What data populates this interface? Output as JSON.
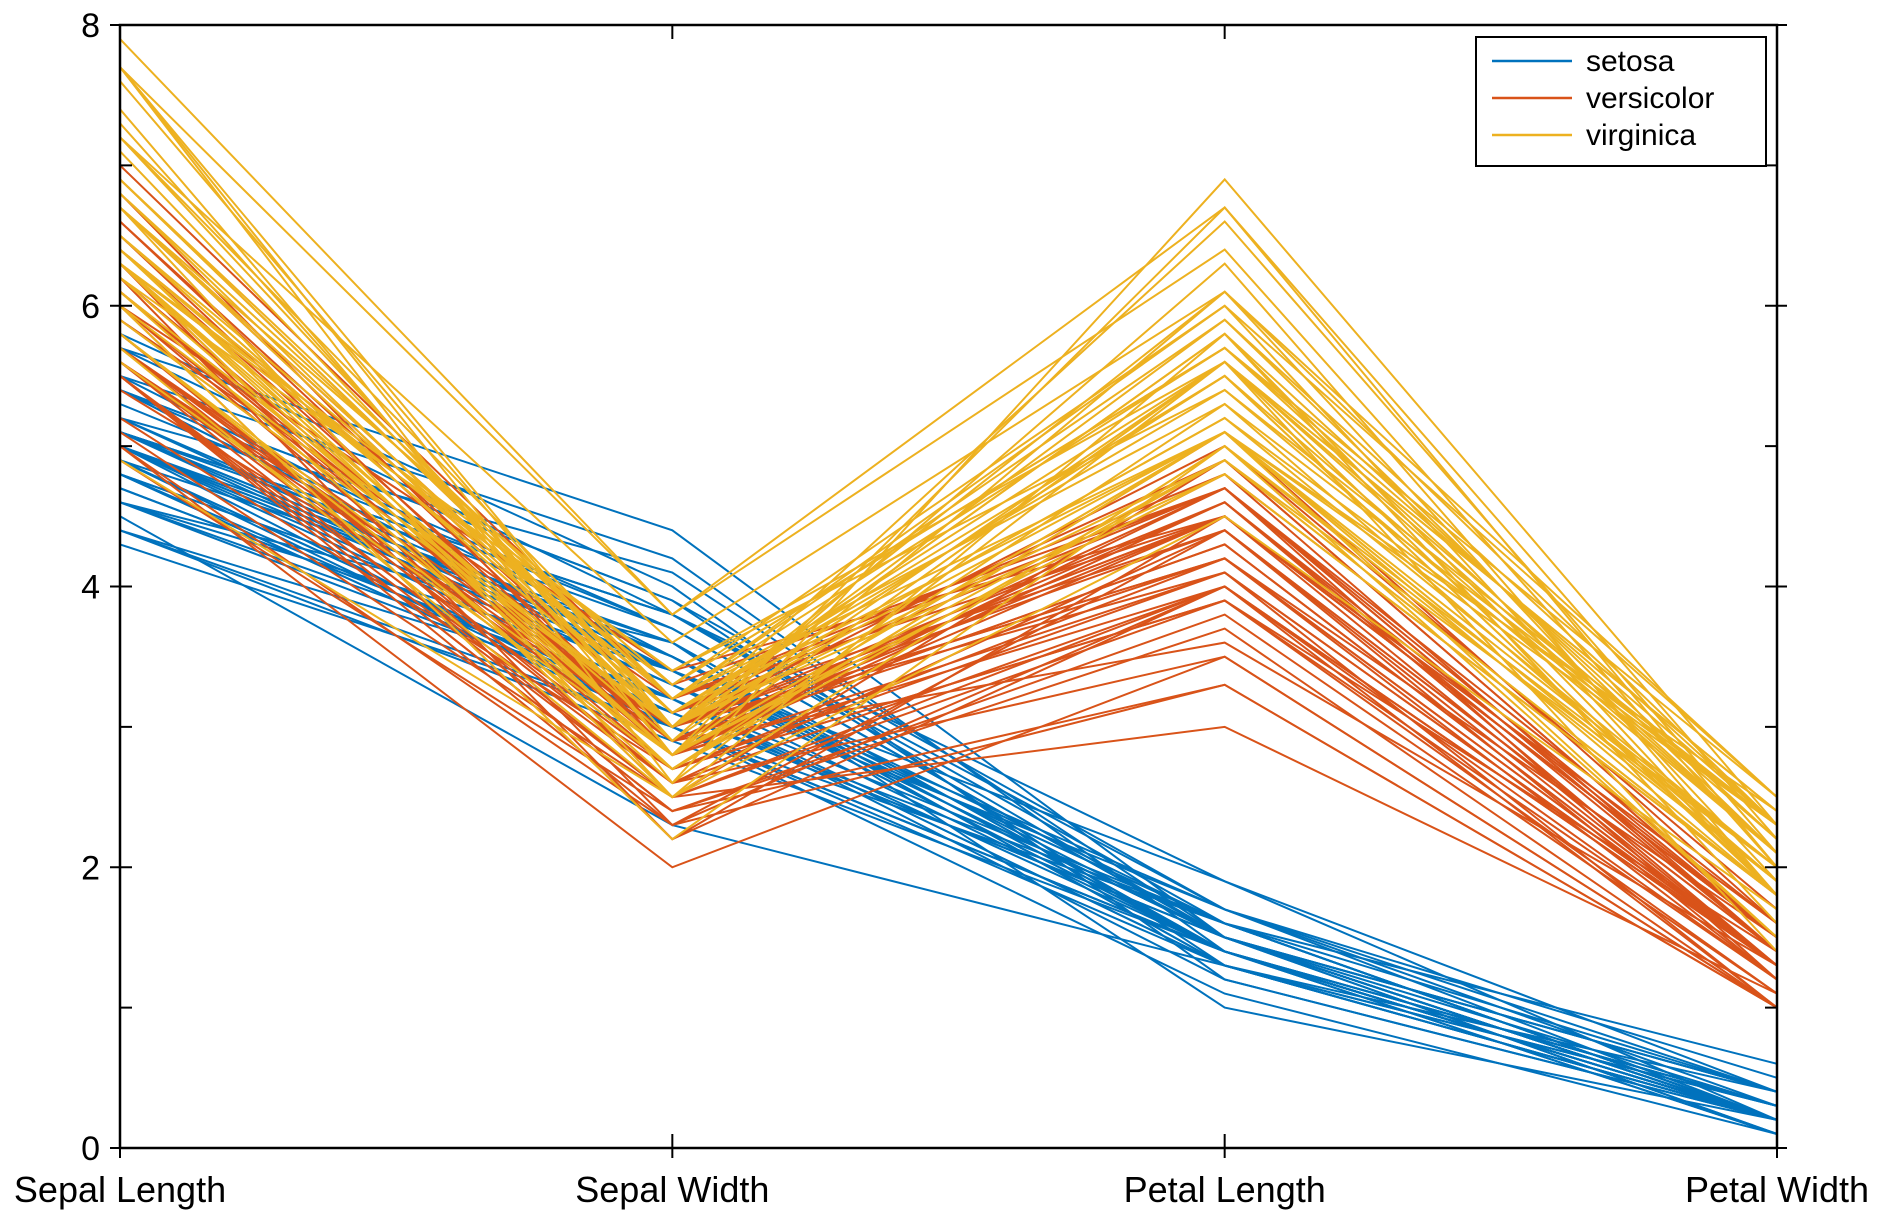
{
  "chart_data": {
    "type": "line",
    "title": "",
    "xlabel": "",
    "ylabel": "",
    "ylim": [
      0,
      8
    ],
    "yticks": [
      0,
      2,
      4,
      6,
      8
    ],
    "categories": [
      "Sepal Length",
      "Sepal Width",
      "Petal Length",
      "Petal Width"
    ],
    "grid": false,
    "legend": {
      "placement": "top-right",
      "entries": [
        "setosa",
        "versicolor",
        "virginica"
      ]
    },
    "colors": {
      "setosa": "#0072BD",
      "versicolor": "#D95319",
      "virginica": "#EDB120"
    },
    "series": [
      {
        "name": "setosa",
        "values": [
          [
            5.1,
            3.5,
            1.4,
            0.2
          ],
          [
            4.9,
            3.0,
            1.4,
            0.2
          ],
          [
            4.7,
            3.2,
            1.3,
            0.2
          ],
          [
            4.6,
            3.1,
            1.5,
            0.2
          ],
          [
            5.0,
            3.6,
            1.4,
            0.2
          ],
          [
            5.4,
            3.9,
            1.7,
            0.4
          ],
          [
            4.6,
            3.4,
            1.4,
            0.3
          ],
          [
            5.0,
            3.4,
            1.5,
            0.2
          ],
          [
            4.4,
            2.9,
            1.4,
            0.2
          ],
          [
            4.9,
            3.1,
            1.5,
            0.1
          ],
          [
            5.4,
            3.7,
            1.5,
            0.2
          ],
          [
            4.8,
            3.4,
            1.6,
            0.2
          ],
          [
            4.8,
            3.0,
            1.4,
            0.1
          ],
          [
            4.3,
            3.0,
            1.1,
            0.1
          ],
          [
            5.8,
            4.0,
            1.2,
            0.2
          ],
          [
            5.7,
            4.4,
            1.5,
            0.4
          ],
          [
            5.4,
            3.9,
            1.3,
            0.4
          ],
          [
            5.1,
            3.5,
            1.4,
            0.3
          ],
          [
            5.7,
            3.8,
            1.7,
            0.3
          ],
          [
            5.1,
            3.8,
            1.5,
            0.3
          ],
          [
            5.4,
            3.4,
            1.7,
            0.2
          ],
          [
            5.1,
            3.7,
            1.5,
            0.4
          ],
          [
            4.6,
            3.6,
            1.0,
            0.2
          ],
          [
            5.1,
            3.3,
            1.7,
            0.5
          ],
          [
            4.8,
            3.4,
            1.9,
            0.2
          ],
          [
            5.0,
            3.0,
            1.6,
            0.2
          ],
          [
            5.0,
            3.4,
            1.6,
            0.4
          ],
          [
            5.2,
            3.5,
            1.5,
            0.2
          ],
          [
            5.2,
            3.4,
            1.4,
            0.2
          ],
          [
            4.7,
            3.2,
            1.6,
            0.2
          ],
          [
            4.8,
            3.1,
            1.6,
            0.2
          ],
          [
            5.4,
            3.4,
            1.5,
            0.4
          ],
          [
            5.2,
            4.1,
            1.5,
            0.1
          ],
          [
            5.5,
            4.2,
            1.4,
            0.2
          ],
          [
            4.9,
            3.1,
            1.5,
            0.2
          ],
          [
            5.0,
            3.2,
            1.2,
            0.2
          ],
          [
            5.5,
            3.5,
            1.3,
            0.2
          ],
          [
            4.9,
            3.6,
            1.4,
            0.1
          ],
          [
            4.4,
            3.0,
            1.3,
            0.2
          ],
          [
            5.1,
            3.4,
            1.5,
            0.2
          ],
          [
            5.0,
            3.5,
            1.3,
            0.3
          ],
          [
            4.5,
            2.3,
            1.3,
            0.3
          ],
          [
            4.4,
            3.2,
            1.3,
            0.2
          ],
          [
            5.0,
            3.5,
            1.6,
            0.6
          ],
          [
            5.1,
            3.8,
            1.9,
            0.4
          ],
          [
            4.8,
            3.0,
            1.4,
            0.3
          ],
          [
            5.1,
            3.8,
            1.6,
            0.2
          ],
          [
            4.6,
            3.2,
            1.4,
            0.2
          ],
          [
            5.3,
            3.7,
            1.5,
            0.2
          ],
          [
            5.0,
            3.3,
            1.4,
            0.2
          ]
        ]
      },
      {
        "name": "versicolor",
        "values": [
          [
            7.0,
            3.2,
            4.7,
            1.4
          ],
          [
            6.4,
            3.2,
            4.5,
            1.5
          ],
          [
            6.9,
            3.1,
            4.9,
            1.5
          ],
          [
            5.5,
            2.3,
            4.0,
            1.3
          ],
          [
            6.5,
            2.8,
            4.6,
            1.5
          ],
          [
            5.7,
            2.8,
            4.5,
            1.3
          ],
          [
            6.3,
            3.3,
            4.7,
            1.6
          ],
          [
            4.9,
            2.4,
            3.3,
            1.0
          ],
          [
            6.6,
            2.9,
            4.6,
            1.3
          ],
          [
            5.2,
            2.7,
            3.9,
            1.4
          ],
          [
            5.0,
            2.0,
            3.5,
            1.0
          ],
          [
            5.9,
            3.0,
            4.2,
            1.5
          ],
          [
            6.0,
            2.2,
            4.0,
            1.0
          ],
          [
            6.1,
            2.9,
            4.7,
            1.4
          ],
          [
            5.6,
            2.9,
            3.6,
            1.3
          ],
          [
            6.7,
            3.1,
            4.4,
            1.4
          ],
          [
            5.6,
            3.0,
            4.5,
            1.5
          ],
          [
            5.8,
            2.7,
            4.1,
            1.0
          ],
          [
            6.2,
            2.2,
            4.5,
            1.5
          ],
          [
            5.6,
            2.5,
            3.9,
            1.1
          ],
          [
            5.9,
            3.2,
            4.8,
            1.8
          ],
          [
            6.1,
            2.8,
            4.0,
            1.3
          ],
          [
            6.3,
            2.5,
            4.9,
            1.5
          ],
          [
            6.1,
            2.8,
            4.7,
            1.2
          ],
          [
            6.4,
            2.9,
            4.3,
            1.3
          ],
          [
            6.6,
            3.0,
            4.4,
            1.4
          ],
          [
            6.8,
            2.8,
            4.8,
            1.4
          ],
          [
            6.7,
            3.0,
            5.0,
            1.7
          ],
          [
            6.0,
            2.9,
            4.5,
            1.5
          ],
          [
            5.7,
            2.6,
            3.5,
            1.0
          ],
          [
            5.5,
            2.4,
            3.8,
            1.1
          ],
          [
            5.5,
            2.4,
            3.7,
            1.0
          ],
          [
            5.8,
            2.7,
            3.9,
            1.2
          ],
          [
            6.0,
            2.7,
            5.1,
            1.6
          ],
          [
            5.4,
            3.0,
            4.5,
            1.5
          ],
          [
            6.0,
            3.4,
            4.5,
            1.6
          ],
          [
            6.7,
            3.1,
            4.7,
            1.5
          ],
          [
            6.3,
            2.3,
            4.4,
            1.3
          ],
          [
            5.6,
            3.0,
            4.1,
            1.3
          ],
          [
            5.5,
            2.5,
            4.0,
            1.3
          ],
          [
            5.5,
            2.6,
            4.4,
            1.2
          ],
          [
            6.1,
            3.0,
            4.6,
            1.4
          ],
          [
            5.8,
            2.6,
            4.0,
            1.2
          ],
          [
            5.0,
            2.3,
            3.3,
            1.0
          ],
          [
            5.6,
            2.7,
            4.2,
            1.3
          ],
          [
            5.7,
            3.0,
            4.2,
            1.2
          ],
          [
            5.7,
            2.9,
            4.2,
            1.3
          ],
          [
            6.2,
            2.9,
            4.3,
            1.3
          ],
          [
            5.1,
            2.5,
            3.0,
            1.1
          ],
          [
            5.7,
            2.8,
            4.1,
            1.3
          ]
        ]
      },
      {
        "name": "virginica",
        "values": [
          [
            6.3,
            3.3,
            6.0,
            2.5
          ],
          [
            5.8,
            2.7,
            5.1,
            1.9
          ],
          [
            7.1,
            3.0,
            5.9,
            2.1
          ],
          [
            6.3,
            2.9,
            5.6,
            1.8
          ],
          [
            6.5,
            3.0,
            5.8,
            2.2
          ],
          [
            7.6,
            3.0,
            6.6,
            2.1
          ],
          [
            4.9,
            2.5,
            4.5,
            1.7
          ],
          [
            7.3,
            2.9,
            6.3,
            1.8
          ],
          [
            6.7,
            2.5,
            5.8,
            1.8
          ],
          [
            7.2,
            3.6,
            6.1,
            2.5
          ],
          [
            6.5,
            3.2,
            5.1,
            2.0
          ],
          [
            6.4,
            2.7,
            5.3,
            1.9
          ],
          [
            6.8,
            3.0,
            5.5,
            2.1
          ],
          [
            5.7,
            2.5,
            5.0,
            2.0
          ],
          [
            5.8,
            2.8,
            5.1,
            2.4
          ],
          [
            6.4,
            3.2,
            5.3,
            2.3
          ],
          [
            6.5,
            3.0,
            5.5,
            1.8
          ],
          [
            7.7,
            3.8,
            6.7,
            2.2
          ],
          [
            7.7,
            2.6,
            6.9,
            2.3
          ],
          [
            6.0,
            2.2,
            5.0,
            1.5
          ],
          [
            6.9,
            3.2,
            5.7,
            2.3
          ],
          [
            5.6,
            2.8,
            4.9,
            2.0
          ],
          [
            7.7,
            2.8,
            6.7,
            2.0
          ],
          [
            6.3,
            2.7,
            4.9,
            1.8
          ],
          [
            6.7,
            3.3,
            5.7,
            2.1
          ],
          [
            7.2,
            3.2,
            6.0,
            1.8
          ],
          [
            6.2,
            2.8,
            4.8,
            1.8
          ],
          [
            6.1,
            3.0,
            4.9,
            1.8
          ],
          [
            6.4,
            2.8,
            5.6,
            2.1
          ],
          [
            7.2,
            3.0,
            5.8,
            1.6
          ],
          [
            7.4,
            2.8,
            6.1,
            1.9
          ],
          [
            7.9,
            3.8,
            6.4,
            2.0
          ],
          [
            6.4,
            2.8,
            5.6,
            2.2
          ],
          [
            6.3,
            2.8,
            5.1,
            1.5
          ],
          [
            6.1,
            2.6,
            5.6,
            1.4
          ],
          [
            7.7,
            3.0,
            6.1,
            2.3
          ],
          [
            6.3,
            3.4,
            5.6,
            2.4
          ],
          [
            6.4,
            3.1,
            5.5,
            1.8
          ],
          [
            6.0,
            3.0,
            4.8,
            1.8
          ],
          [
            6.9,
            3.1,
            5.4,
            2.1
          ],
          [
            6.7,
            3.1,
            5.6,
            2.4
          ],
          [
            6.9,
            3.1,
            5.1,
            2.3
          ],
          [
            5.8,
            2.7,
            5.1,
            1.9
          ],
          [
            6.8,
            3.2,
            5.9,
            2.3
          ],
          [
            6.7,
            3.3,
            5.7,
            2.5
          ],
          [
            6.7,
            3.0,
            5.2,
            2.3
          ],
          [
            6.3,
            2.5,
            5.0,
            1.9
          ],
          [
            6.5,
            3.0,
            5.2,
            2.0
          ],
          [
            6.2,
            3.4,
            5.4,
            2.3
          ],
          [
            5.9,
            3.0,
            5.1,
            1.8
          ]
        ]
      }
    ]
  }
}
